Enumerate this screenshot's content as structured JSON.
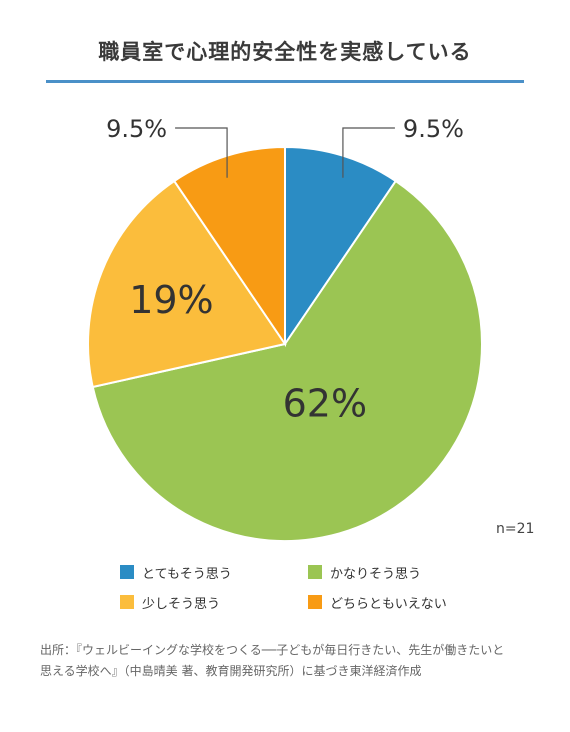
{
  "chart_data": {
    "type": "pie",
    "title": "職員室で心理的安全性を実感している",
    "note": "n=21",
    "slices": [
      {
        "label": "とてもそう思う",
        "value": 9.5,
        "display": "9.5%",
        "color": "#2b8cc4"
      },
      {
        "label": "かなりそう思う",
        "value": 62,
        "display": "62%",
        "color": "#9bc553"
      },
      {
        "label": "少しそう思う",
        "value": 19,
        "display": "19%",
        "color": "#fbbd3c"
      },
      {
        "label": "どちらともいえない",
        "value": 9.5,
        "display": "9.5%",
        "color": "#f89b14"
      }
    ]
  },
  "source_lines": [
    "出所：『ウェルビーイングな学校をつくる──子どもが毎日行きたい、先生が働きたいと",
    "思える学校へ』（中島晴美 著、教育開発研究所）に基づき東洋経済作成"
  ]
}
